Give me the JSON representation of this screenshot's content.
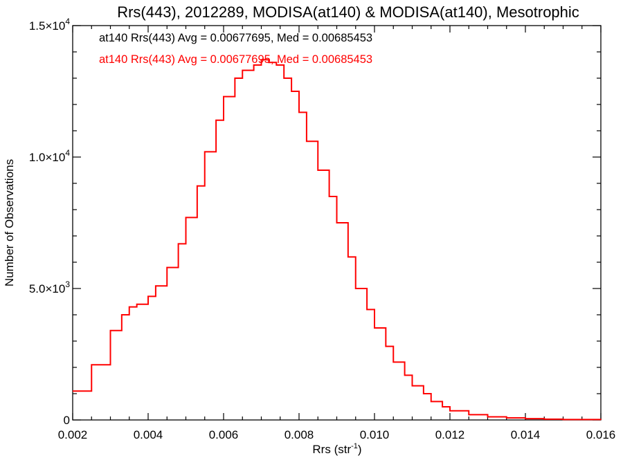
{
  "chart_data": {
    "type": "histogram",
    "title": "Rrs(443), 2012289, MODISA(at140) & MODISA(at140), Mesotrophic",
    "xlabel": "Rrs (str",
    "xlabel_sup": "-1",
    "xlabel_close": ")",
    "ylabel": "Number of Observations",
    "xlim": [
      0.002,
      0.016
    ],
    "ylim": [
      0,
      15000
    ],
    "xtick_labels": [
      "0.002",
      "0.004",
      "0.006",
      "0.008",
      "0.010",
      "0.012",
      "0.014",
      "0.016"
    ],
    "ytick_labels": [
      {
        "mant": "0",
        "exp": ""
      },
      {
        "mant": "5.0×10",
        "exp": "3"
      },
      {
        "mant": "1.0×10",
        "exp": "4"
      },
      {
        "mant": "1.5×10",
        "exp": "4"
      }
    ],
    "annotations": [
      {
        "text": "at140 Rrs(443) Avg = 0.00677695, Med = 0.00685453",
        "color": "#000000"
      },
      {
        "text": "at140 Rrs(443) Avg = 0.00677695, Med = 0.00685453",
        "color": "#ff0000"
      }
    ],
    "series": [
      {
        "color": "#ff0000",
        "x": [
          0.002,
          0.0025,
          0.003,
          0.0033,
          0.0035,
          0.0037,
          0.004,
          0.0042,
          0.0045,
          0.0048,
          0.005,
          0.0053,
          0.0055,
          0.0058,
          0.006,
          0.0063,
          0.0065,
          0.0068,
          0.007,
          0.0072,
          0.0074,
          0.0076,
          0.0078,
          0.008,
          0.0082,
          0.0085,
          0.0088,
          0.009,
          0.0093,
          0.0095,
          0.0098,
          0.01,
          0.0103,
          0.0105,
          0.0108,
          0.011,
          0.0113,
          0.0115,
          0.0118,
          0.012,
          0.0125,
          0.013,
          0.0135,
          0.014,
          0.0145,
          0.015,
          0.016
        ],
        "values": [
          1100,
          2100,
          3400,
          4000,
          4300,
          4400,
          4700,
          5100,
          5800,
          6700,
          7700,
          8900,
          10200,
          11400,
          12300,
          13000,
          13300,
          13500,
          13700,
          13600,
          13500,
          13000,
          12500,
          11700,
          10600,
          9500,
          8500,
          7500,
          6200,
          5000,
          4200,
          3500,
          2800,
          2200,
          1700,
          1300,
          1000,
          700,
          500,
          350,
          200,
          120,
          80,
          50,
          30,
          15,
          5
        ]
      }
    ]
  }
}
